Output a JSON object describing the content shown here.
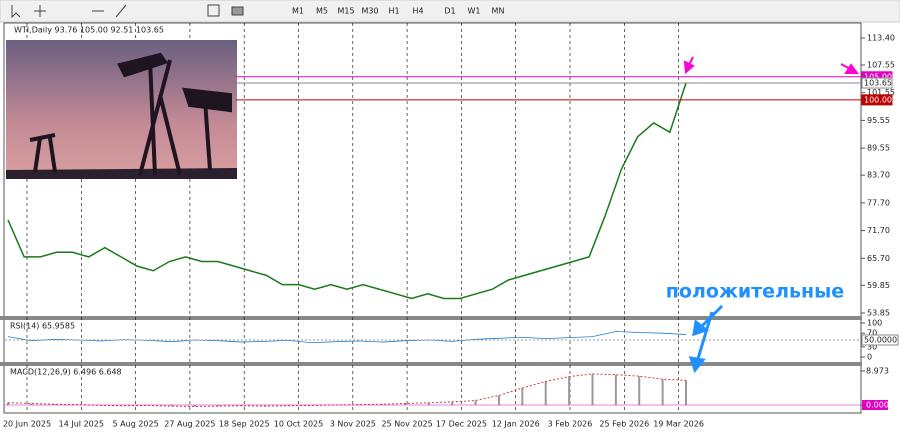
{
  "toolbar": {
    "timeframes": [
      "M1",
      "M5",
      "M15",
      "M30",
      "H1",
      "H4",
      "D1",
      "W1",
      "MN"
    ]
  },
  "chart": {
    "header": "WTI,Daily  93.76 105.00 92.51 103.65",
    "ylim": [
      53.85,
      113.4
    ],
    "yticks": [
      {
        "value": 113.4,
        "label": "113.40"
      },
      {
        "value": 107.55,
        "label": "107.55"
      },
      {
        "value": 101.55,
        "label": "101.55"
      },
      {
        "value": 95.55,
        "label": "95.55"
      },
      {
        "value": 89.55,
        "label": "89.55"
      },
      {
        "value": 83.7,
        "label": "83.70"
      },
      {
        "value": 77.7,
        "label": "77.70"
      },
      {
        "value": 71.7,
        "label": "71.70"
      },
      {
        "value": 65.7,
        "label": "65.70"
      },
      {
        "value": 59.85,
        "label": "59.85"
      },
      {
        "value": 53.85,
        "label": "53.85"
      }
    ],
    "levels": [
      {
        "value": 105,
        "label": "105.00",
        "color": "#e000c0"
      },
      {
        "value": 103.65,
        "label": "103.65",
        "color": "#888888"
      },
      {
        "value": 100,
        "label": "100.00",
        "color": "#c00000"
      }
    ],
    "dates": [
      "20 Jun 2025",
      "14 Jul 2025",
      "5 Aug 2025",
      "27 Aug 2025",
      "18 Sep 2025",
      "10 Oct 2025",
      "3 Nov 2025",
      "25 Nov 2025",
      "17 Dec 2025",
      "12 Jan 2026",
      "3 Feb 2026",
      "25 Feb 2026",
      "19 Mar 2026"
    ],
    "close": [
      74,
      66,
      66,
      67,
      67,
      66,
      68,
      66,
      64,
      63,
      65,
      66,
      65,
      65,
      64,
      63,
      62,
      60,
      60,
      59,
      60,
      59,
      60,
      59,
      58,
      57,
      58,
      57,
      57,
      58,
      59,
      61,
      62,
      63,
      64,
      65,
      66,
      75,
      85,
      92,
      95,
      93,
      103.65
    ],
    "color": "#1a7a1a"
  },
  "rsi": {
    "label": "RSI(14) 65.9585",
    "ylim": [
      0,
      100
    ],
    "yticks": [
      100,
      70,
      30,
      0
    ],
    "level": {
      "value": 50,
      "label": "50.0000"
    },
    "values": [
      60,
      48,
      52,
      50,
      47,
      51,
      49,
      45,
      50,
      48,
      44,
      46,
      49,
      42,
      45,
      47,
      44,
      48,
      50,
      46,
      52,
      55,
      58,
      54,
      57,
      60,
      75,
      72,
      70,
      66
    ],
    "color": "#1e7fd0"
  },
  "macd": {
    "label": "MACD(12,26,9) 6.496 6.648",
    "ylim": [
      0,
      8.973
    ],
    "yticks": [
      {
        "value": 8.973,
        "label": "8.973"
      },
      {
        "value": 0,
        "label": "0.000"
      }
    ],
    "values": [
      0.6,
      0.4,
      0.2,
      0.1,
      -0.1,
      -0.2,
      -0.1,
      -0.3,
      -0.4,
      -0.3,
      -0.2,
      -0.3,
      -0.2,
      -0.1,
      0,
      0.1,
      0.2,
      0.4,
      0.6,
      0.8,
      1.2,
      2.5,
      4.5,
      6.2,
      7.5,
      8.2,
      8.0,
      7.6,
      6.8,
      6.496
    ],
    "color": "#c04040"
  },
  "annotation": "положительные"
}
